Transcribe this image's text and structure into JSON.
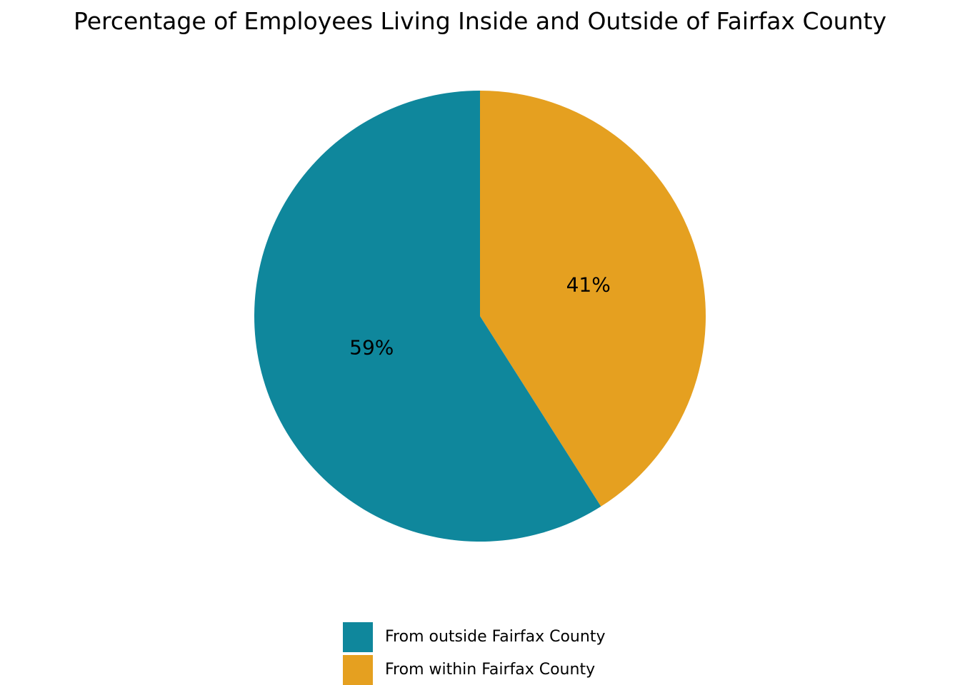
{
  "chart_data": {
    "type": "pie",
    "title": "Percentage of Employees Living Inside and Outside of Fairfax County",
    "start_angle": "12 o'clock",
    "direction": "clockwise",
    "slices": [
      {
        "label": "From within Fairfax County",
        "value": 41,
        "display": "41%",
        "color": "#e5a020"
      },
      {
        "label": "From outside Fairfax County",
        "value": 59,
        "display": "59%",
        "color": "#0f879c"
      }
    ],
    "legend": {
      "position": "bottom-center",
      "entries": [
        {
          "label": "From outside Fairfax County",
          "color": "#0f879c"
        },
        {
          "label": "From within Fairfax County",
          "color": "#e5a020"
        }
      ]
    }
  }
}
